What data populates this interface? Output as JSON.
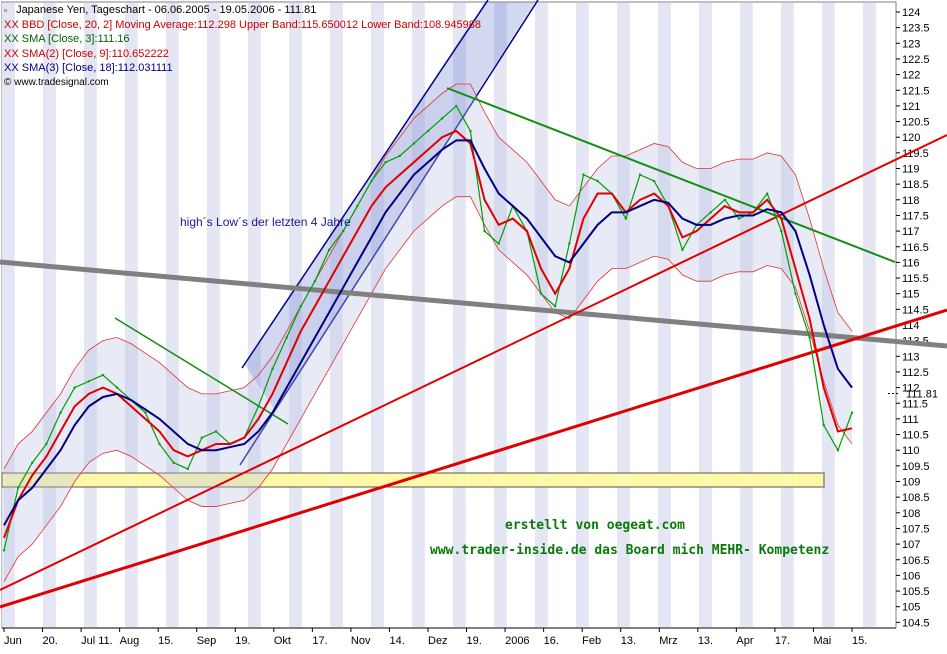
{
  "legend": [
    {
      "icon": "square-icon",
      "text": "Japanese Yen, Tageschart - 06.06.2005 - 19.05.2006 - 111.81",
      "color": "#000000"
    },
    {
      "icon": "",
      "text": "XX BBD [Close, 20, 2] Moving Average:112.298 Upper Band:115.650012 Lower Band:108.945988",
      "color": "#cc0000"
    },
    {
      "icon": "",
      "text": "XX SMA [Close, 3]:111.16",
      "color": "#006600"
    },
    {
      "icon": "",
      "text": "XX SMA(2) [Close, 9]:110.652222",
      "color": "#cc0000"
    },
    {
      "icon": "",
      "text": "XX SMA(3) [Close, 18]:112.031111",
      "color": "#000080"
    },
    {
      "icon": "copyright-icon",
      "text": "© www.tradesignal.com",
      "color": "#000000"
    }
  ],
  "annotation": "high´s Low´s der letzten 4 Jahre",
  "credits": {
    "line1": "erstellt von oegeat.com",
    "line2": "www.trader-inside.de das Board mich MEHR- Kompetenz"
  },
  "chart_data": {
    "type": "line",
    "title": "Japanese Yen, Tageschart - 06.06.2005 - 19.05.2006 - 111.81",
    "y_axis": {
      "ylim": [
        104.4,
        124.3
      ],
      "ticks": [
        "124",
        "123.5",
        "123",
        "122.5",
        "122",
        "121.5",
        "121",
        "120.5",
        "120",
        "119.5",
        "119",
        "118.5",
        "118",
        "117.5",
        "117",
        "116.5",
        "116",
        "115.5",
        "115",
        "114.5",
        "114",
        "113.5",
        "113",
        "112.5",
        "112",
        "111.5",
        "111",
        "110.5",
        "110",
        "109.5",
        "109",
        "108.5",
        "108",
        "107.5",
        "107",
        "106.5",
        "106",
        "105.5",
        "105",
        "104.5"
      ],
      "last_value_label": "111.81",
      "position": "right"
    },
    "x_axis": {
      "ticks": [
        "Jun",
        "20.",
        "Jul 11.",
        "Aug",
        "15.",
        "Sep",
        "19.",
        "Okt",
        "17.",
        "Nov",
        "14.",
        "Dez",
        "19.",
        "2006",
        "16.",
        "Feb",
        "13.",
        "Mrz",
        "13.",
        "Apr",
        "17.",
        "Mai",
        "15."
      ]
    },
    "grid": "alternating vertical week shading",
    "series": [
      {
        "name": "XX SMA [Close, 3]",
        "color": "#00a000",
        "values": [
          106.8,
          108.8,
          109.6,
          110.2,
          111.2,
          112.0,
          112.2,
          112.4,
          112.0,
          111.6,
          111.2,
          110.2,
          109.6,
          109.4,
          110.4,
          110.6,
          110.2,
          110.4,
          111.4,
          112.6,
          113.6,
          114.6,
          115.4,
          116.4,
          117.0,
          117.8,
          118.6,
          119.2,
          119.4,
          119.8,
          120.2,
          120.6,
          121.0,
          120.2,
          117.0,
          116.6,
          117.8,
          117.0,
          115.0,
          114.6,
          116.6,
          118.8,
          118.6,
          118.2,
          117.4,
          118.8,
          118.6,
          117.8,
          116.4,
          117.2,
          117.6,
          118.0,
          117.4,
          117.6,
          118.2,
          117.0,
          115.0,
          113.6,
          110.8,
          110.0,
          111.2
        ]
      },
      {
        "name": "XX SMA(2) [Close, 9]",
        "color": "#e00000",
        "values": [
          107.2,
          108.4,
          109.2,
          109.8,
          110.6,
          111.4,
          111.8,
          112.0,
          111.8,
          111.4,
          111.0,
          110.6,
          110.0,
          109.8,
          110.0,
          110.2,
          110.2,
          110.4,
          111.0,
          111.8,
          112.8,
          113.8,
          114.6,
          115.4,
          116.2,
          117.0,
          117.8,
          118.4,
          118.8,
          119.2,
          119.6,
          120.0,
          120.2,
          119.8,
          118.0,
          117.2,
          117.4,
          117.0,
          115.8,
          115.0,
          115.8,
          117.4,
          118.2,
          118.2,
          117.6,
          118.0,
          118.2,
          117.8,
          116.8,
          117.0,
          117.4,
          117.8,
          117.6,
          117.6,
          118.0,
          117.4,
          115.8,
          114.2,
          112.0,
          110.6,
          110.7
        ]
      },
      {
        "name": "XX SMA(3) [Close, 18]",
        "color": "#000080",
        "values": [
          107.6,
          108.4,
          108.8,
          109.4,
          110.0,
          110.8,
          111.4,
          111.7,
          111.8,
          111.6,
          111.3,
          111.0,
          110.6,
          110.2,
          110.0,
          110.0,
          110.1,
          110.2,
          110.6,
          111.2,
          112.0,
          112.8,
          113.6,
          114.4,
          115.2,
          116.0,
          116.8,
          117.6,
          118.2,
          118.8,
          119.2,
          119.6,
          119.9,
          119.9,
          119.0,
          118.2,
          117.8,
          117.4,
          116.8,
          116.2,
          116.0,
          116.6,
          117.2,
          117.6,
          117.6,
          117.8,
          118.0,
          117.9,
          117.4,
          117.2,
          117.2,
          117.4,
          117.5,
          117.5,
          117.7,
          117.6,
          117.0,
          115.6,
          114.0,
          112.6,
          112.0
        ]
      }
    ]
  }
}
